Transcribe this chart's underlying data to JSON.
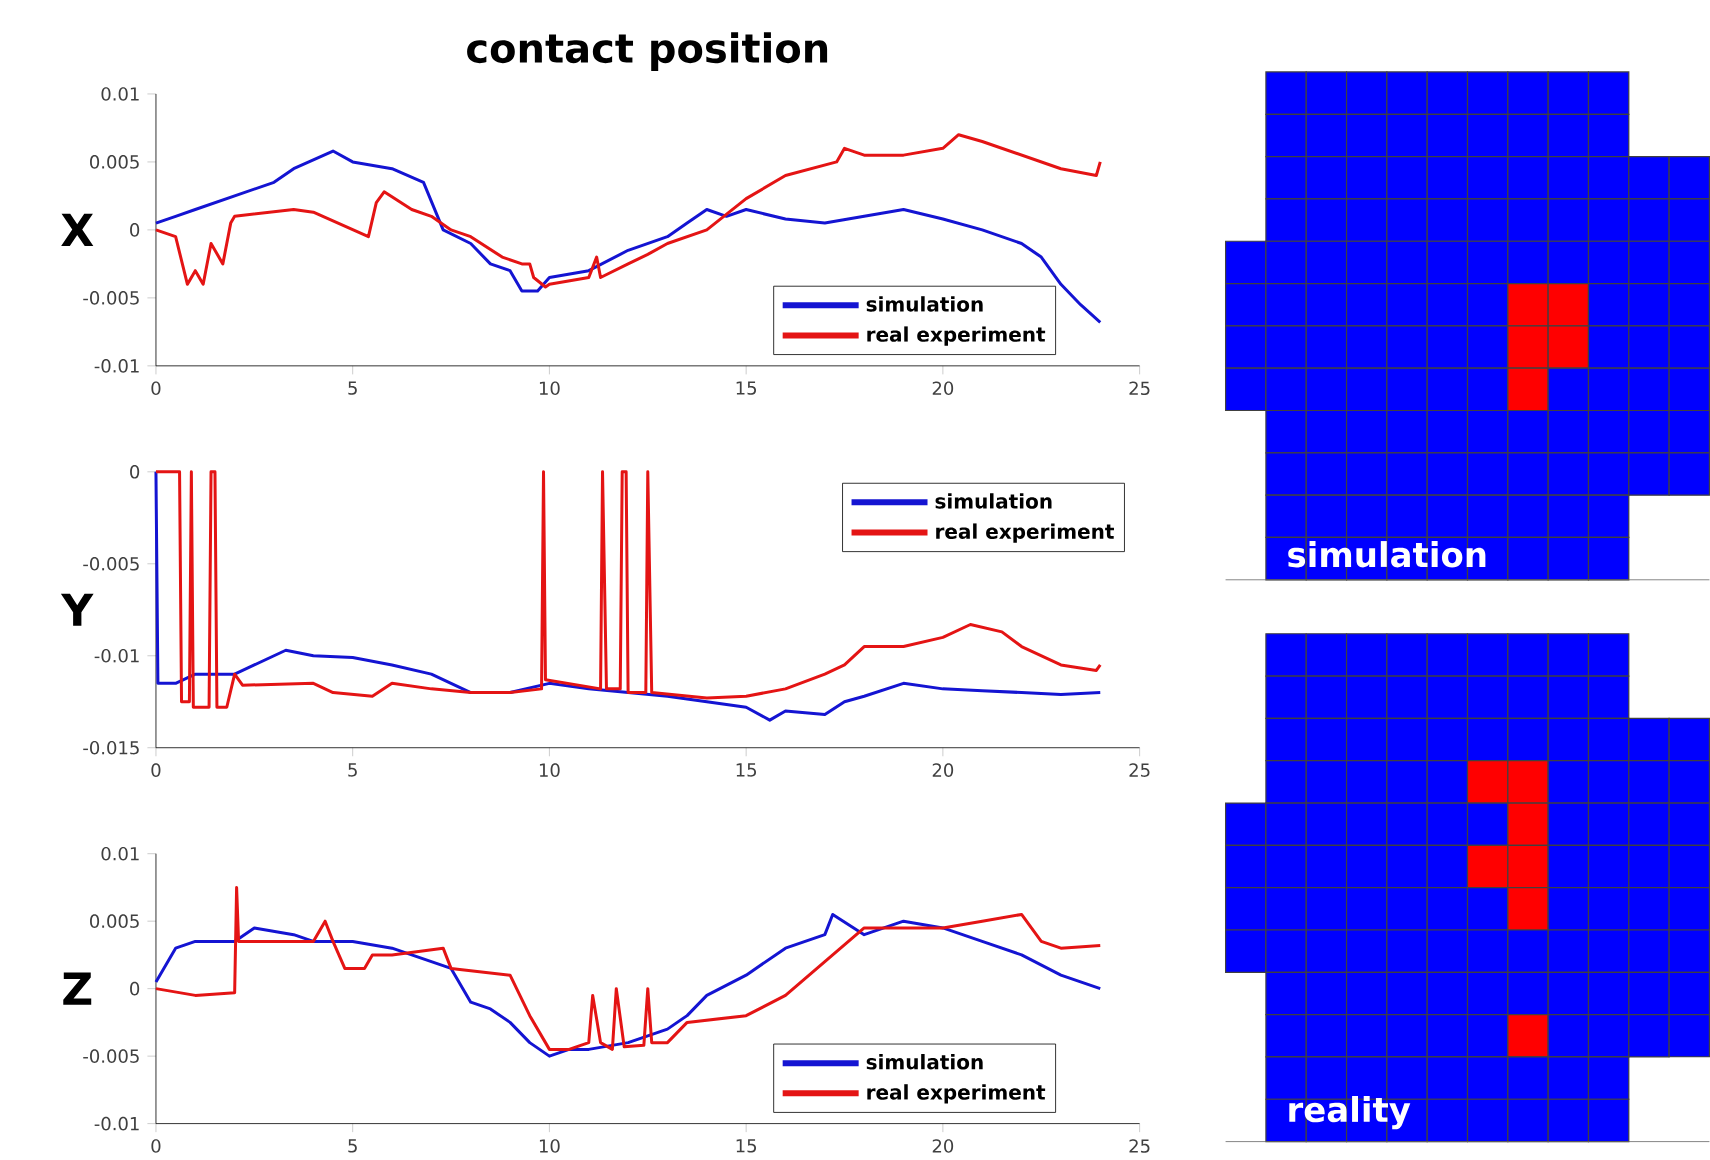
{
  "chart_data": [
    {
      "type": "line",
      "title": "contact position",
      "ylabel": "X",
      "xlim": [
        0,
        25
      ],
      "xticks": [
        0,
        5,
        10,
        15,
        20,
        25
      ],
      "ylim": [
        -0.01,
        0.01
      ],
      "yticks": [
        -0.01,
        -0.005,
        0,
        0.005,
        0.01
      ],
      "legend": "bottom right",
      "series": [
        {
          "name": "simulation",
          "color": "#1414d2",
          "x": [
            0,
            0.5,
            1,
            2,
            3,
            3.5,
            4.5,
            5,
            6,
            6.8,
            7.3,
            8,
            8.5,
            9,
            9.3,
            9.7,
            10,
            11,
            12,
            13,
            13.5,
            14,
            14.5,
            15,
            16,
            17,
            18,
            19,
            20,
            21,
            22,
            22.5,
            23,
            23.5,
            24
          ],
          "values": [
            0.0005,
            0.001,
            0.0015,
            0.0025,
            0.0035,
            0.0045,
            0.0058,
            0.005,
            0.0045,
            0.0035,
            0,
            -0.001,
            -0.0025,
            -0.003,
            -0.0045,
            -0.0045,
            -0.0035,
            -0.003,
            -0.0015,
            -0.0005,
            0.0005,
            0.0015,
            0.001,
            0.0015,
            0.0008,
            0.0005,
            0.001,
            0.0015,
            0.0008,
            0,
            -0.001,
            -0.002,
            -0.004,
            -0.0055,
            -0.0068
          ]
        },
        {
          "name": "real experiment",
          "color": "#e41414",
          "x": [
            0,
            0.5,
            0.8,
            1,
            1.2,
            1.4,
            1.7,
            1.9,
            2,
            3.5,
            4,
            5.4,
            5.6,
            5.8,
            6.5,
            7,
            7.5,
            8,
            8.8,
            9.3,
            9.5,
            9.6,
            9.9,
            10,
            11,
            11.2,
            11.3,
            12,
            12.5,
            13,
            14,
            15,
            16,
            17.3,
            17.5,
            18,
            19,
            20,
            20.4,
            21,
            22,
            23,
            23.9,
            24
          ],
          "values": [
            0,
            -0.0005,
            -0.004,
            -0.003,
            -0.004,
            -0.001,
            -0.0025,
            0.0005,
            0.001,
            0.0015,
            0.0013,
            -0.0005,
            0.002,
            0.0028,
            0.0015,
            0.001,
            0,
            -0.0005,
            -0.002,
            -0.0025,
            -0.0025,
            -0.0035,
            -0.0042,
            -0.004,
            -0.0035,
            -0.002,
            -0.0035,
            -0.0025,
            -0.0018,
            -0.001,
            0,
            0.0023,
            0.004,
            0.005,
            0.006,
            0.0055,
            0.0055,
            0.006,
            0.007,
            0.0065,
            0.0055,
            0.0045,
            0.004,
            0.005
          ]
        }
      ]
    },
    {
      "type": "line",
      "ylabel": "Y",
      "xlim": [
        0,
        25
      ],
      "xticks": [
        0,
        5,
        10,
        15,
        20,
        25
      ],
      "ylim": [
        -0.015,
        0
      ],
      "yticks": [
        -0.015,
        -0.01,
        -0.005,
        0
      ],
      "legend": "top right",
      "series": [
        {
          "name": "simulation",
          "color": "#1414d2",
          "x": [
            0,
            0.05,
            0.5,
            1,
            2,
            2.5,
            3.3,
            4,
            5,
            6,
            7,
            7.5,
            8,
            9,
            10,
            11,
            12,
            13,
            14,
            15,
            15.6,
            16,
            17,
            17.5,
            18,
            19,
            20,
            21,
            22,
            23,
            24
          ],
          "values": [
            0,
            -0.0115,
            -0.0115,
            -0.011,
            -0.011,
            -0.0105,
            -0.0097,
            -0.01,
            -0.0101,
            -0.0105,
            -0.011,
            -0.0115,
            -0.012,
            -0.012,
            -0.0115,
            -0.0118,
            -0.012,
            -0.0122,
            -0.0125,
            -0.0128,
            -0.0135,
            -0.013,
            -0.0132,
            -0.0125,
            -0.0122,
            -0.0115,
            -0.0118,
            -0.0119,
            -0.012,
            -0.0121,
            -0.012
          ]
        },
        {
          "name": "real experiment",
          "color": "#e41414",
          "x": [
            0,
            0.6,
            0.65,
            0.85,
            0.9,
            0.95,
            1.35,
            1.4,
            1.5,
            1.55,
            1.8,
            2,
            2.2,
            4,
            4.5,
            5.5,
            6,
            7,
            8,
            9,
            9.8,
            9.85,
            9.9,
            11.3,
            11.35,
            11.45,
            11.8,
            11.85,
            11.95,
            12,
            12.45,
            12.5,
            12.6,
            14,
            15,
            16,
            17,
            17.5,
            18,
            19,
            20,
            20.7,
            21.5,
            22,
            23,
            23.9,
            24
          ],
          "values": [
            0,
            0,
            -0.0125,
            -0.0125,
            0,
            -0.0128,
            -0.0128,
            0,
            0,
            -0.0128,
            -0.0128,
            -0.011,
            -0.0116,
            -0.0115,
            -0.012,
            -0.0122,
            -0.0115,
            -0.0118,
            -0.012,
            -0.012,
            -0.0118,
            0,
            -0.0113,
            -0.0118,
            0,
            -0.0118,
            -0.0118,
            0,
            0,
            -0.012,
            -0.012,
            0,
            -0.012,
            -0.0123,
            -0.0122,
            -0.0118,
            -0.011,
            -0.0105,
            -0.0095,
            -0.0095,
            -0.009,
            -0.0083,
            -0.0087,
            -0.0095,
            -0.0105,
            -0.0108,
            -0.0105
          ]
        }
      ]
    },
    {
      "type": "line",
      "ylabel": "Z",
      "xlim": [
        0,
        25
      ],
      "xticks": [
        0,
        5,
        10,
        15,
        20,
        25
      ],
      "ylim": [
        -0.01,
        0.01
      ],
      "yticks": [
        -0.01,
        -0.005,
        0,
        0.005,
        0.01
      ],
      "legend": "bottom right",
      "series": [
        {
          "name": "simulation",
          "color": "#1414d2",
          "x": [
            0,
            0.3,
            0.5,
            1,
            2,
            2.5,
            3.5,
            4,
            5,
            6,
            7,
            7.5,
            8,
            8.5,
            9,
            9.5,
            10,
            10.5,
            11,
            12,
            13,
            13.5,
            14,
            15,
            16,
            17,
            17.2,
            18,
            19,
            20,
            21,
            22,
            23,
            24
          ],
          "values": [
            0.0005,
            0.002,
            0.003,
            0.0035,
            0.0035,
            0.0045,
            0.004,
            0.0035,
            0.0035,
            0.003,
            0.002,
            0.0015,
            -0.001,
            -0.0015,
            -0.0025,
            -0.004,
            -0.005,
            -0.0045,
            -0.0045,
            -0.004,
            -0.003,
            -0.002,
            -0.0005,
            0.001,
            0.003,
            0.004,
            0.0055,
            0.004,
            0.005,
            0.0045,
            0.0035,
            0.0025,
            0.001,
            0
          ]
        },
        {
          "name": "real experiment",
          "color": "#e41414",
          "x": [
            0,
            1,
            2,
            2.05,
            2.1,
            4,
            4.3,
            4.5,
            4.8,
            5.3,
            5.5,
            6,
            7.3,
            7.5,
            9,
            9.5,
            10,
            10.5,
            11,
            11.1,
            11.3,
            11.6,
            11.7,
            11.9,
            12.4,
            12.5,
            12.6,
            13,
            13.5,
            15,
            16,
            17,
            18,
            19,
            20,
            21,
            22,
            22.5,
            23,
            24
          ],
          "values": [
            0,
            -0.0005,
            -0.0003,
            0.0075,
            0.0035,
            0.0035,
            0.005,
            0.0035,
            0.0015,
            0.0015,
            0.0025,
            0.0025,
            0.003,
            0.0015,
            0.001,
            -0.002,
            -0.0045,
            -0.0045,
            -0.004,
            -0.0005,
            -0.004,
            -0.0045,
            0,
            -0.0043,
            -0.0042,
            0,
            -0.004,
            -0.004,
            -0.0025,
            -0.002,
            -0.0005,
            0.002,
            0.0045,
            0.0045,
            0.0045,
            0.005,
            0.0055,
            0.0035,
            0.003,
            0.0032
          ]
        }
      ]
    },
    {
      "type": "other",
      "title": "simulation"
    },
    {
      "type": "other",
      "title": "reality"
    }
  ]
}
